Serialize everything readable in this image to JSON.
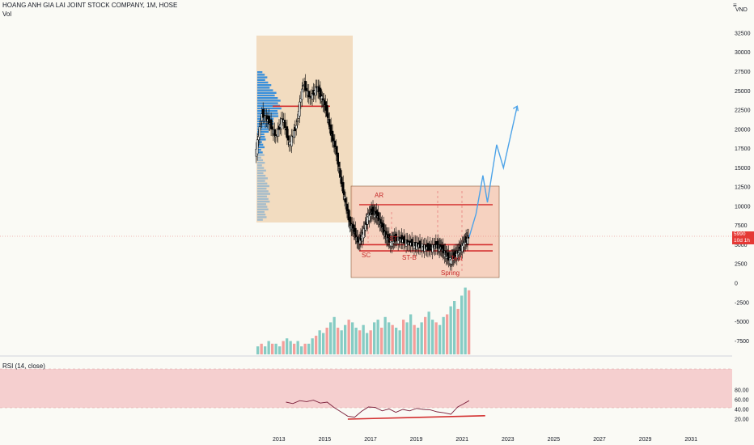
{
  "legend": {
    "title": "HOANG ANH GIA LAI JOINT STOCK COMPANY, 1M, HOSE",
    "volume": "Vol",
    "rsi": "RSI (14, close)"
  },
  "axis_button": "≡",
  "price_axis": {
    "unit": "VND",
    "ticks": [
      "32500",
      "30000",
      "27500",
      "25000",
      "22500",
      "20000",
      "17500",
      "15000",
      "12500",
      "10000",
      "7500",
      "5000",
      "2500",
      "0",
      "-2500",
      "-5000",
      "-7500"
    ],
    "current_price": "5990",
    "countdown": "10d 1h"
  },
  "rsi_axis": {
    "ticks": [
      "80.00",
      "60.00",
      "40.00",
      "20.00"
    ]
  },
  "time_axis": {
    "ticks": [
      "2013",
      "2015",
      "2017",
      "2019",
      "2021",
      "2023",
      "2025",
      "2027",
      "2029",
      "2031"
    ]
  },
  "annotations": {
    "ar": "AR",
    "st": "ST",
    "sc": "SC",
    "st_b": "ST-B",
    "test": "Test",
    "spring": "Spring"
  },
  "colors": {
    "up": "#26a69a",
    "down": "#ef5350",
    "candle": "#000000",
    "profile_box": "#f2dcc0",
    "volume_profile": "#2f8bdc",
    "range_box": "#f4c4ad",
    "annotation": "#c62828",
    "projection": "#4da3e8",
    "rsi_band": "#f5cfcf",
    "rsi_line": "#7b1f3a"
  },
  "chart_data": {
    "type": "candlestick",
    "symbol": "HOANG ANH GIA LAI JOINT STOCK COMPANY",
    "interval": "1M",
    "exchange": "HOSE",
    "last_price": 5990,
    "price_range": [
      -8000,
      33500
    ],
    "x_range": [
      2012,
      2032
    ],
    "levels": {
      "profile_poc": 23000,
      "ar_resistance": 10200,
      "support_upper": 5000,
      "support_lower": 4200
    },
    "monthly_close": [
      [
        2012.0,
        16500
      ],
      [
        2012.3,
        22000
      ],
      [
        2012.6,
        21000
      ],
      [
        2012.9,
        19000
      ],
      [
        2013.2,
        21500
      ],
      [
        2013.5,
        18000
      ],
      [
        2013.8,
        20500
      ],
      [
        2014.1,
        26000
      ],
      [
        2014.4,
        24000
      ],
      [
        2014.7,
        25500
      ],
      [
        2014.9,
        24000
      ],
      [
        2015.1,
        22500
      ],
      [
        2015.3,
        19500
      ],
      [
        2015.5,
        17500
      ],
      [
        2015.7,
        14000
      ],
      [
        2015.9,
        11000
      ],
      [
        2016.1,
        8000
      ],
      [
        2016.3,
        6800
      ],
      [
        2016.5,
        5200
      ],
      [
        2016.7,
        6500
      ],
      [
        2016.9,
        8600
      ],
      [
        2017.1,
        9300
      ],
      [
        2017.3,
        8800
      ],
      [
        2017.5,
        7600
      ],
      [
        2017.7,
        6200
      ],
      [
        2017.9,
        5300
      ],
      [
        2018.1,
        5800
      ],
      [
        2018.4,
        5600
      ],
      [
        2018.7,
        5200
      ],
      [
        2019.0,
        5000
      ],
      [
        2019.3,
        4800
      ],
      [
        2019.6,
        4500
      ],
      [
        2019.9,
        4900
      ],
      [
        2020.1,
        4600
      ],
      [
        2020.3,
        3800
      ],
      [
        2020.5,
        3000
      ],
      [
        2020.7,
        3600
      ],
      [
        2020.9,
        4200
      ],
      [
        2021.1,
        5200
      ],
      [
        2021.3,
        5990
      ]
    ],
    "projection": [
      [
        2021.3,
        5990
      ],
      [
        2021.6,
        9000
      ],
      [
        2021.9,
        14000
      ],
      [
        2022.1,
        10500
      ],
      [
        2022.5,
        18000
      ],
      [
        2022.8,
        15000
      ],
      [
        2023.4,
        23000
      ]
    ],
    "volume": [
      3,
      4,
      3,
      5,
      4,
      4,
      3,
      5,
      6,
      5,
      4,
      5,
      3,
      4,
      4,
      6,
      7,
      9,
      8,
      10,
      12,
      14,
      10,
      9,
      11,
      13,
      12,
      10,
      9,
      11,
      8,
      9,
      12,
      13,
      10,
      14,
      12,
      11,
      10,
      9,
      13,
      12,
      15,
      11,
      10,
      12,
      14,
      16,
      13,
      12,
      11,
      14,
      15,
      18,
      20,
      17,
      22,
      25,
      24
    ],
    "rsi": {
      "label": "RSI (14, close)",
      "upper_band": 70,
      "lower_band": 30,
      "values": [
        [
          2013.3,
          55
        ],
        [
          2013.6,
          52
        ],
        [
          2013.9,
          58
        ],
        [
          2014.2,
          56
        ],
        [
          2014.5,
          59
        ],
        [
          2014.8,
          53
        ],
        [
          2015.1,
          55
        ],
        [
          2015.4,
          44
        ],
        [
          2015.7,
          35
        ],
        [
          2016.0,
          26
        ],
        [
          2016.3,
          24
        ],
        [
          2016.6,
          36
        ],
        [
          2016.9,
          45
        ],
        [
          2017.2,
          44
        ],
        [
          2017.5,
          37
        ],
        [
          2017.8,
          41
        ],
        [
          2018.1,
          34
        ],
        [
          2018.4,
          40
        ],
        [
          2018.7,
          37
        ],
        [
          2019.0,
          42
        ],
        [
          2019.3,
          40
        ],
        [
          2019.6,
          39
        ],
        [
          2019.9,
          35
        ],
        [
          2020.2,
          33
        ],
        [
          2020.5,
          30
        ],
        [
          2020.8,
          45
        ],
        [
          2021.0,
          50
        ],
        [
          2021.3,
          58
        ]
      ],
      "divergence_line": [
        [
          2016.0,
          20
        ],
        [
          2022.0,
          27
        ]
      ]
    }
  }
}
